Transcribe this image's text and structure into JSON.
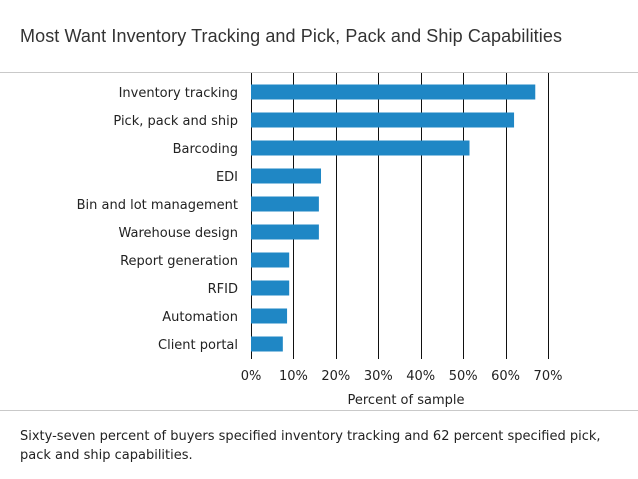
{
  "title": "Most Want Inventory Tracking and Pick, Pack and Ship Capabilities",
  "caption": "Sixty-seven percent of buyers specified inventory tracking and 62 percent specified pick, pack and ship capabilities.",
  "colors": {
    "bar": "#1f87c5",
    "grid": "#111111"
  },
  "chart_data": {
    "type": "bar",
    "orientation": "horizontal",
    "title": "Most Want Inventory Tracking and Pick, Pack and Ship Capabilities",
    "xlabel": "Percent of sample",
    "ylabel": "",
    "xlim": [
      0,
      70
    ],
    "xticks": [
      0,
      10,
      20,
      30,
      40,
      50,
      60,
      70
    ],
    "xtick_labels": [
      "0%",
      "10%",
      "20%",
      "30%",
      "40%",
      "50%",
      "60%",
      "70%"
    ],
    "grid": "vertical",
    "categories": [
      "Inventory tracking",
      "Pick, pack and ship",
      "Barcoding",
      "EDI",
      "Bin and lot management",
      "Warehouse design",
      "Report generation",
      "RFID",
      "Automation",
      "Client portal"
    ],
    "values": [
      67,
      62,
      51.5,
      16.5,
      16,
      16,
      9,
      9,
      8.5,
      7.5
    ]
  }
}
